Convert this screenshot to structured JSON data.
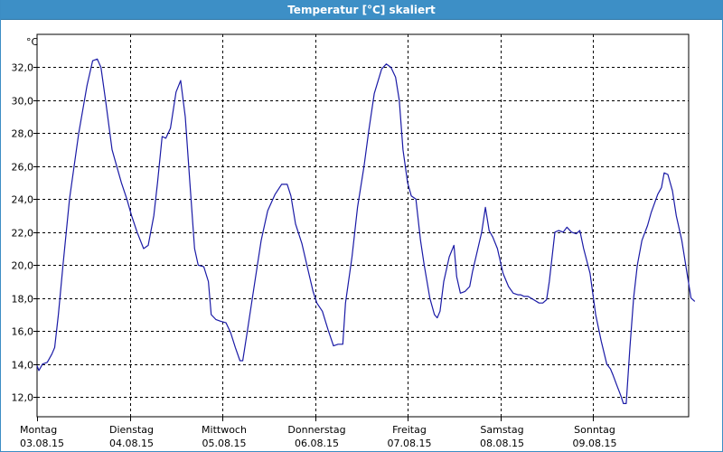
{
  "window": {
    "title": "Temperatur [°C] skaliert"
  },
  "chart_data": {
    "type": "line",
    "title": "Temperatur [°C] skaliert",
    "ylabel": "°C",
    "xlabel": "",
    "ylim": [
      10.8,
      34.0
    ],
    "xlim": [
      0,
      7
    ],
    "grid": true,
    "y_ticks": [
      "12,0",
      "14,0",
      "16,0",
      "18,0",
      "20,0",
      "22,0",
      "24,0",
      "26,0",
      "28,0",
      "30,0",
      "32,0"
    ],
    "y_tick_values": [
      12,
      14,
      16,
      18,
      20,
      22,
      24,
      26,
      28,
      30,
      32
    ],
    "x_ticks": [
      {
        "day": "Montag",
        "date": "03.08.15",
        "value": 0
      },
      {
        "day": "Dienstag",
        "date": "04.08.15",
        "value": 1
      },
      {
        "day": "Mittwoch",
        "date": "05.08.15",
        "value": 2
      },
      {
        "day": "Donnerstag",
        "date": "06.08.15",
        "value": 3
      },
      {
        "day": "Freitag",
        "date": "07.08.15",
        "value": 4
      },
      {
        "day": "Samstag",
        "date": "08.08.15",
        "value": 5
      },
      {
        "day": "Sonntag",
        "date": "09.08.15",
        "value": 6
      }
    ],
    "line_color": "#1a1aa6",
    "series": [
      {
        "values": [
          [
            0.0,
            13.9
          ],
          [
            0.02,
            13.6
          ],
          [
            0.06,
            14.0
          ],
          [
            0.11,
            14.1
          ],
          [
            0.16,
            14.6
          ],
          [
            0.19,
            15.0
          ],
          [
            0.23,
            17.0
          ],
          [
            0.28,
            20.0
          ],
          [
            0.35,
            24.0
          ],
          [
            0.45,
            28.0
          ],
          [
            0.54,
            30.9
          ],
          [
            0.6,
            32.4
          ],
          [
            0.65,
            32.5
          ],
          [
            0.69,
            32.0
          ],
          [
            0.74,
            30.0
          ],
          [
            0.81,
            27.0
          ],
          [
            0.91,
            25.0
          ],
          [
            0.97,
            24.0
          ],
          [
            1.02,
            23.0
          ],
          [
            1.08,
            22.0
          ],
          [
            1.15,
            21.0
          ],
          [
            1.2,
            21.2
          ],
          [
            1.26,
            23.0
          ],
          [
            1.3,
            25.0
          ],
          [
            1.35,
            27.8
          ],
          [
            1.39,
            27.7
          ],
          [
            1.44,
            28.3
          ],
          [
            1.5,
            30.5
          ],
          [
            1.55,
            31.2
          ],
          [
            1.6,
            29.0
          ],
          [
            1.65,
            25.0
          ],
          [
            1.7,
            21.0
          ],
          [
            1.74,
            20.0
          ],
          [
            1.8,
            19.9
          ],
          [
            1.85,
            19.0
          ],
          [
            1.88,
            17.0
          ],
          [
            1.93,
            16.7
          ],
          [
            1.98,
            16.6
          ],
          [
            2.04,
            16.5
          ],
          [
            2.09,
            15.9
          ],
          [
            2.14,
            15.0
          ],
          [
            2.19,
            14.2
          ],
          [
            2.22,
            14.2
          ],
          [
            2.27,
            16.0
          ],
          [
            2.34,
            18.6
          ],
          [
            2.42,
            21.5
          ],
          [
            2.49,
            23.3
          ],
          [
            2.57,
            24.3
          ],
          [
            2.64,
            24.9
          ],
          [
            2.7,
            24.9
          ],
          [
            2.74,
            24.2
          ],
          [
            2.79,
            22.5
          ],
          [
            2.86,
            21.3
          ],
          [
            2.93,
            19.6
          ],
          [
            2.98,
            18.4
          ],
          [
            3.02,
            17.7
          ],
          [
            3.08,
            17.2
          ],
          [
            3.14,
            16.1
          ],
          [
            3.2,
            15.1
          ],
          [
            3.25,
            15.2
          ],
          [
            3.3,
            15.2
          ],
          [
            3.33,
            17.7
          ],
          [
            3.4,
            20.5
          ],
          [
            3.46,
            23.5
          ],
          [
            3.53,
            26.0
          ],
          [
            3.58,
            28.1
          ],
          [
            3.64,
            30.4
          ],
          [
            3.72,
            31.9
          ],
          [
            3.77,
            32.2
          ],
          [
            3.82,
            32.0
          ],
          [
            3.87,
            31.4
          ],
          [
            3.91,
            30.0
          ],
          [
            3.95,
            27.0
          ],
          [
            4.0,
            25.0
          ],
          [
            4.04,
            24.2
          ],
          [
            4.09,
            24.0
          ],
          [
            4.14,
            21.5
          ],
          [
            4.18,
            20.0
          ],
          [
            4.24,
            18.0
          ],
          [
            4.29,
            17.0
          ],
          [
            4.32,
            16.8
          ],
          [
            4.35,
            17.2
          ],
          [
            4.39,
            19.0
          ],
          [
            4.45,
            20.5
          ],
          [
            4.5,
            21.2
          ],
          [
            4.53,
            19.3
          ],
          [
            4.57,
            18.3
          ],
          [
            4.62,
            18.4
          ],
          [
            4.67,
            18.7
          ],
          [
            4.7,
            19.6
          ],
          [
            4.75,
            20.8
          ],
          [
            4.8,
            22.0
          ],
          [
            4.84,
            23.5
          ],
          [
            4.88,
            22.1
          ],
          [
            4.92,
            21.7
          ],
          [
            4.97,
            21.0
          ],
          [
            5.03,
            19.5
          ],
          [
            5.09,
            18.7
          ],
          [
            5.14,
            18.3
          ],
          [
            5.19,
            18.2
          ],
          [
            5.22,
            18.2
          ],
          [
            5.26,
            18.1
          ],
          [
            5.3,
            18.1
          ],
          [
            5.36,
            17.9
          ],
          [
            5.42,
            17.7
          ],
          [
            5.46,
            17.7
          ],
          [
            5.5,
            17.9
          ],
          [
            5.53,
            19.0
          ],
          [
            5.59,
            22.0
          ],
          [
            5.63,
            22.1
          ],
          [
            5.68,
            22.0
          ],
          [
            5.72,
            22.3
          ],
          [
            5.77,
            22.0
          ],
          [
            5.82,
            21.9
          ],
          [
            5.86,
            22.1
          ],
          [
            5.9,
            21.0
          ],
          [
            5.97,
            19.5
          ],
          [
            6.03,
            17.0
          ],
          [
            6.09,
            15.4
          ],
          [
            6.15,
            14.0
          ],
          [
            6.19,
            13.7
          ],
          [
            6.22,
            13.3
          ],
          [
            6.26,
            12.7
          ],
          [
            6.3,
            12.1
          ],
          [
            6.33,
            11.6
          ],
          [
            6.36,
            11.6
          ],
          [
            6.4,
            15.0
          ],
          [
            6.44,
            18.0
          ],
          [
            6.48,
            20.0
          ],
          [
            6.53,
            21.5
          ],
          [
            6.59,
            22.4
          ],
          [
            6.63,
            23.2
          ],
          [
            6.7,
            24.3
          ],
          [
            6.74,
            24.7
          ],
          [
            6.77,
            25.6
          ],
          [
            6.81,
            25.5
          ],
          [
            6.86,
            24.5
          ],
          [
            6.9,
            23.0
          ],
          [
            6.96,
            21.5
          ],
          [
            7.02,
            19.4
          ],
          [
            7.06,
            18.0
          ],
          [
            7.1,
            17.8
          ]
        ]
      }
    ]
  }
}
